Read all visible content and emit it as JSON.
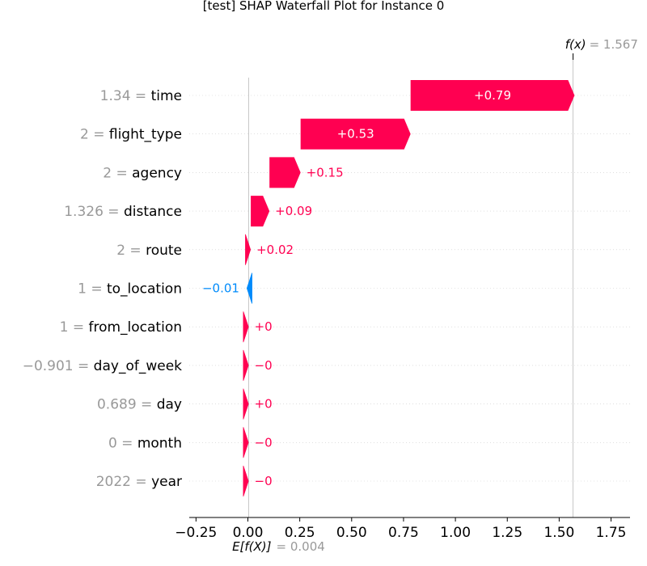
{
  "chart_data": {
    "type": "waterfall",
    "title": "[test] SHAP Waterfall Plot for Instance 0",
    "base_value": 0.004,
    "base_label": "E[f(X)]",
    "base_value_text": "= 0.004",
    "output_value": 1.567,
    "output_label": "f(x)",
    "output_value_text": "= 1.567",
    "xlim": [
      -0.28,
      1.85
    ],
    "x_ticks": [
      -0.25,
      0.0,
      0.25,
      0.5,
      0.75,
      1.0,
      1.25,
      1.5,
      1.75
    ],
    "x_tick_labels": [
      "−0.25",
      "0.00",
      "0.25",
      "0.50",
      "0.75",
      "1.00",
      "1.25",
      "1.50",
      "1.75"
    ],
    "features": [
      {
        "value": "1.34",
        "name": "time",
        "shap": 0.79,
        "label": "+0.79"
      },
      {
        "value": "2",
        "name": "flight_type",
        "shap": 0.53,
        "label": "+0.53"
      },
      {
        "value": "2",
        "name": "agency",
        "shap": 0.15,
        "label": "+0.15"
      },
      {
        "value": "1.326",
        "name": "distance",
        "shap": 0.09,
        "label": "+0.09"
      },
      {
        "value": "2",
        "name": "route",
        "shap": 0.02,
        "label": "+0.02"
      },
      {
        "value": "1",
        "name": "to_location",
        "shap": -0.01,
        "label": "−0.01"
      },
      {
        "value": "1",
        "name": "from_location",
        "shap": 0.0,
        "label": "+0"
      },
      {
        "value": "−0.901",
        "name": "day_of_week",
        "shap": -0.0,
        "label": "−0"
      },
      {
        "value": "0.689",
        "name": "day",
        "shap": 0.0,
        "label": "+0"
      },
      {
        "value": "0",
        "name": "month",
        "shap": -0.0,
        "label": "−0"
      },
      {
        "value": "2022",
        "name": "year",
        "shap": -0.0,
        "label": "−0"
      }
    ],
    "colors": {
      "positive": "#ff0051",
      "negative": "#008bfb",
      "value_text": "#999999"
    }
  }
}
